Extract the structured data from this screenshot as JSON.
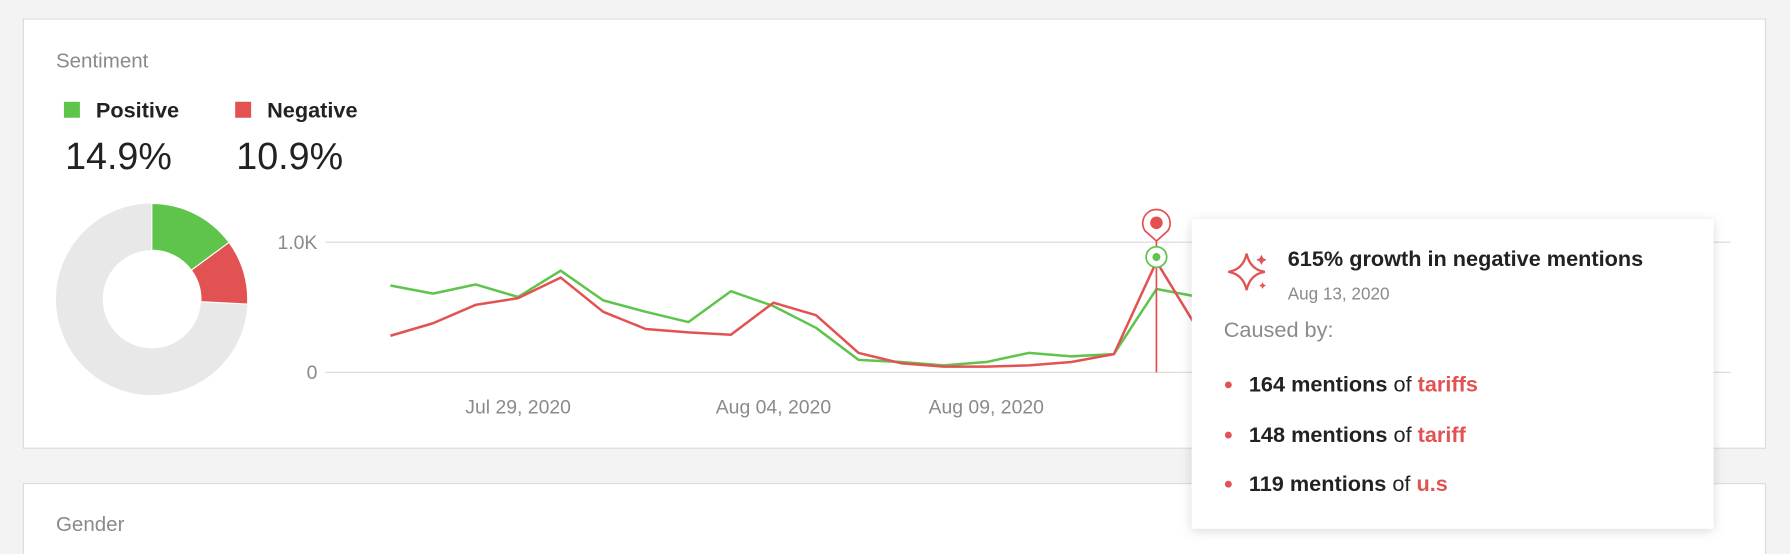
{
  "sentiment": {
    "title": "Sentiment"
  },
  "chart_data": [
    {
      "type": "pie",
      "categories": [
        "Positive",
        "Negative"
      ],
      "values": [
        14.9,
        10.9
      ],
      "value_labels": [
        "14.9%",
        "10.9%"
      ],
      "colors": [
        "#5ec44c",
        "#e35252"
      ]
    },
    {
      "type": "line",
      "x": [
        null,
        null,
        null,
        "Jul 29, 2020",
        null,
        null,
        null,
        null,
        null,
        "Aug 04, 2020",
        null,
        null,
        null,
        null,
        "Aug 09, 2020",
        null,
        null,
        null,
        null,
        null
      ],
      "ylim": [
        0,
        1000
      ],
      "yticks": [
        0,
        {
          "value": 1000,
          "label": "1.0K"
        }
      ],
      "grid": true,
      "series": [
        {
          "color": "#5ec44c",
          "values": [
            667,
            605,
            675,
            579,
            781,
            553,
            465,
            386,
            623,
            509,
            342,
            96,
            79,
            53,
            79,
            149,
            123,
            140,
            640,
            579
          ]
        },
        {
          "color": "#e35252",
          "values": [
            281,
            377,
            518,
            570,
            728,
            465,
            333,
            307,
            289,
            535,
            439,
            149,
            70,
            44,
            44,
            53,
            79,
            140,
            851,
            316
          ]
        }
      ]
    }
  ],
  "tooltip": {
    "title": "615% growth in negative mentions",
    "date": "Aug 13, 2020",
    "caused_by": "Caused by:",
    "items": [
      {
        "mentions": "164 mentions",
        "of": "of",
        "term": "tariffs"
      },
      {
        "mentions": "148 mentions",
        "of": "of",
        "term": "tariff"
      },
      {
        "mentions": "119 mentions",
        "of": "of",
        "term": "u.s"
      }
    ]
  },
  "gender": {
    "title": "Gender"
  }
}
